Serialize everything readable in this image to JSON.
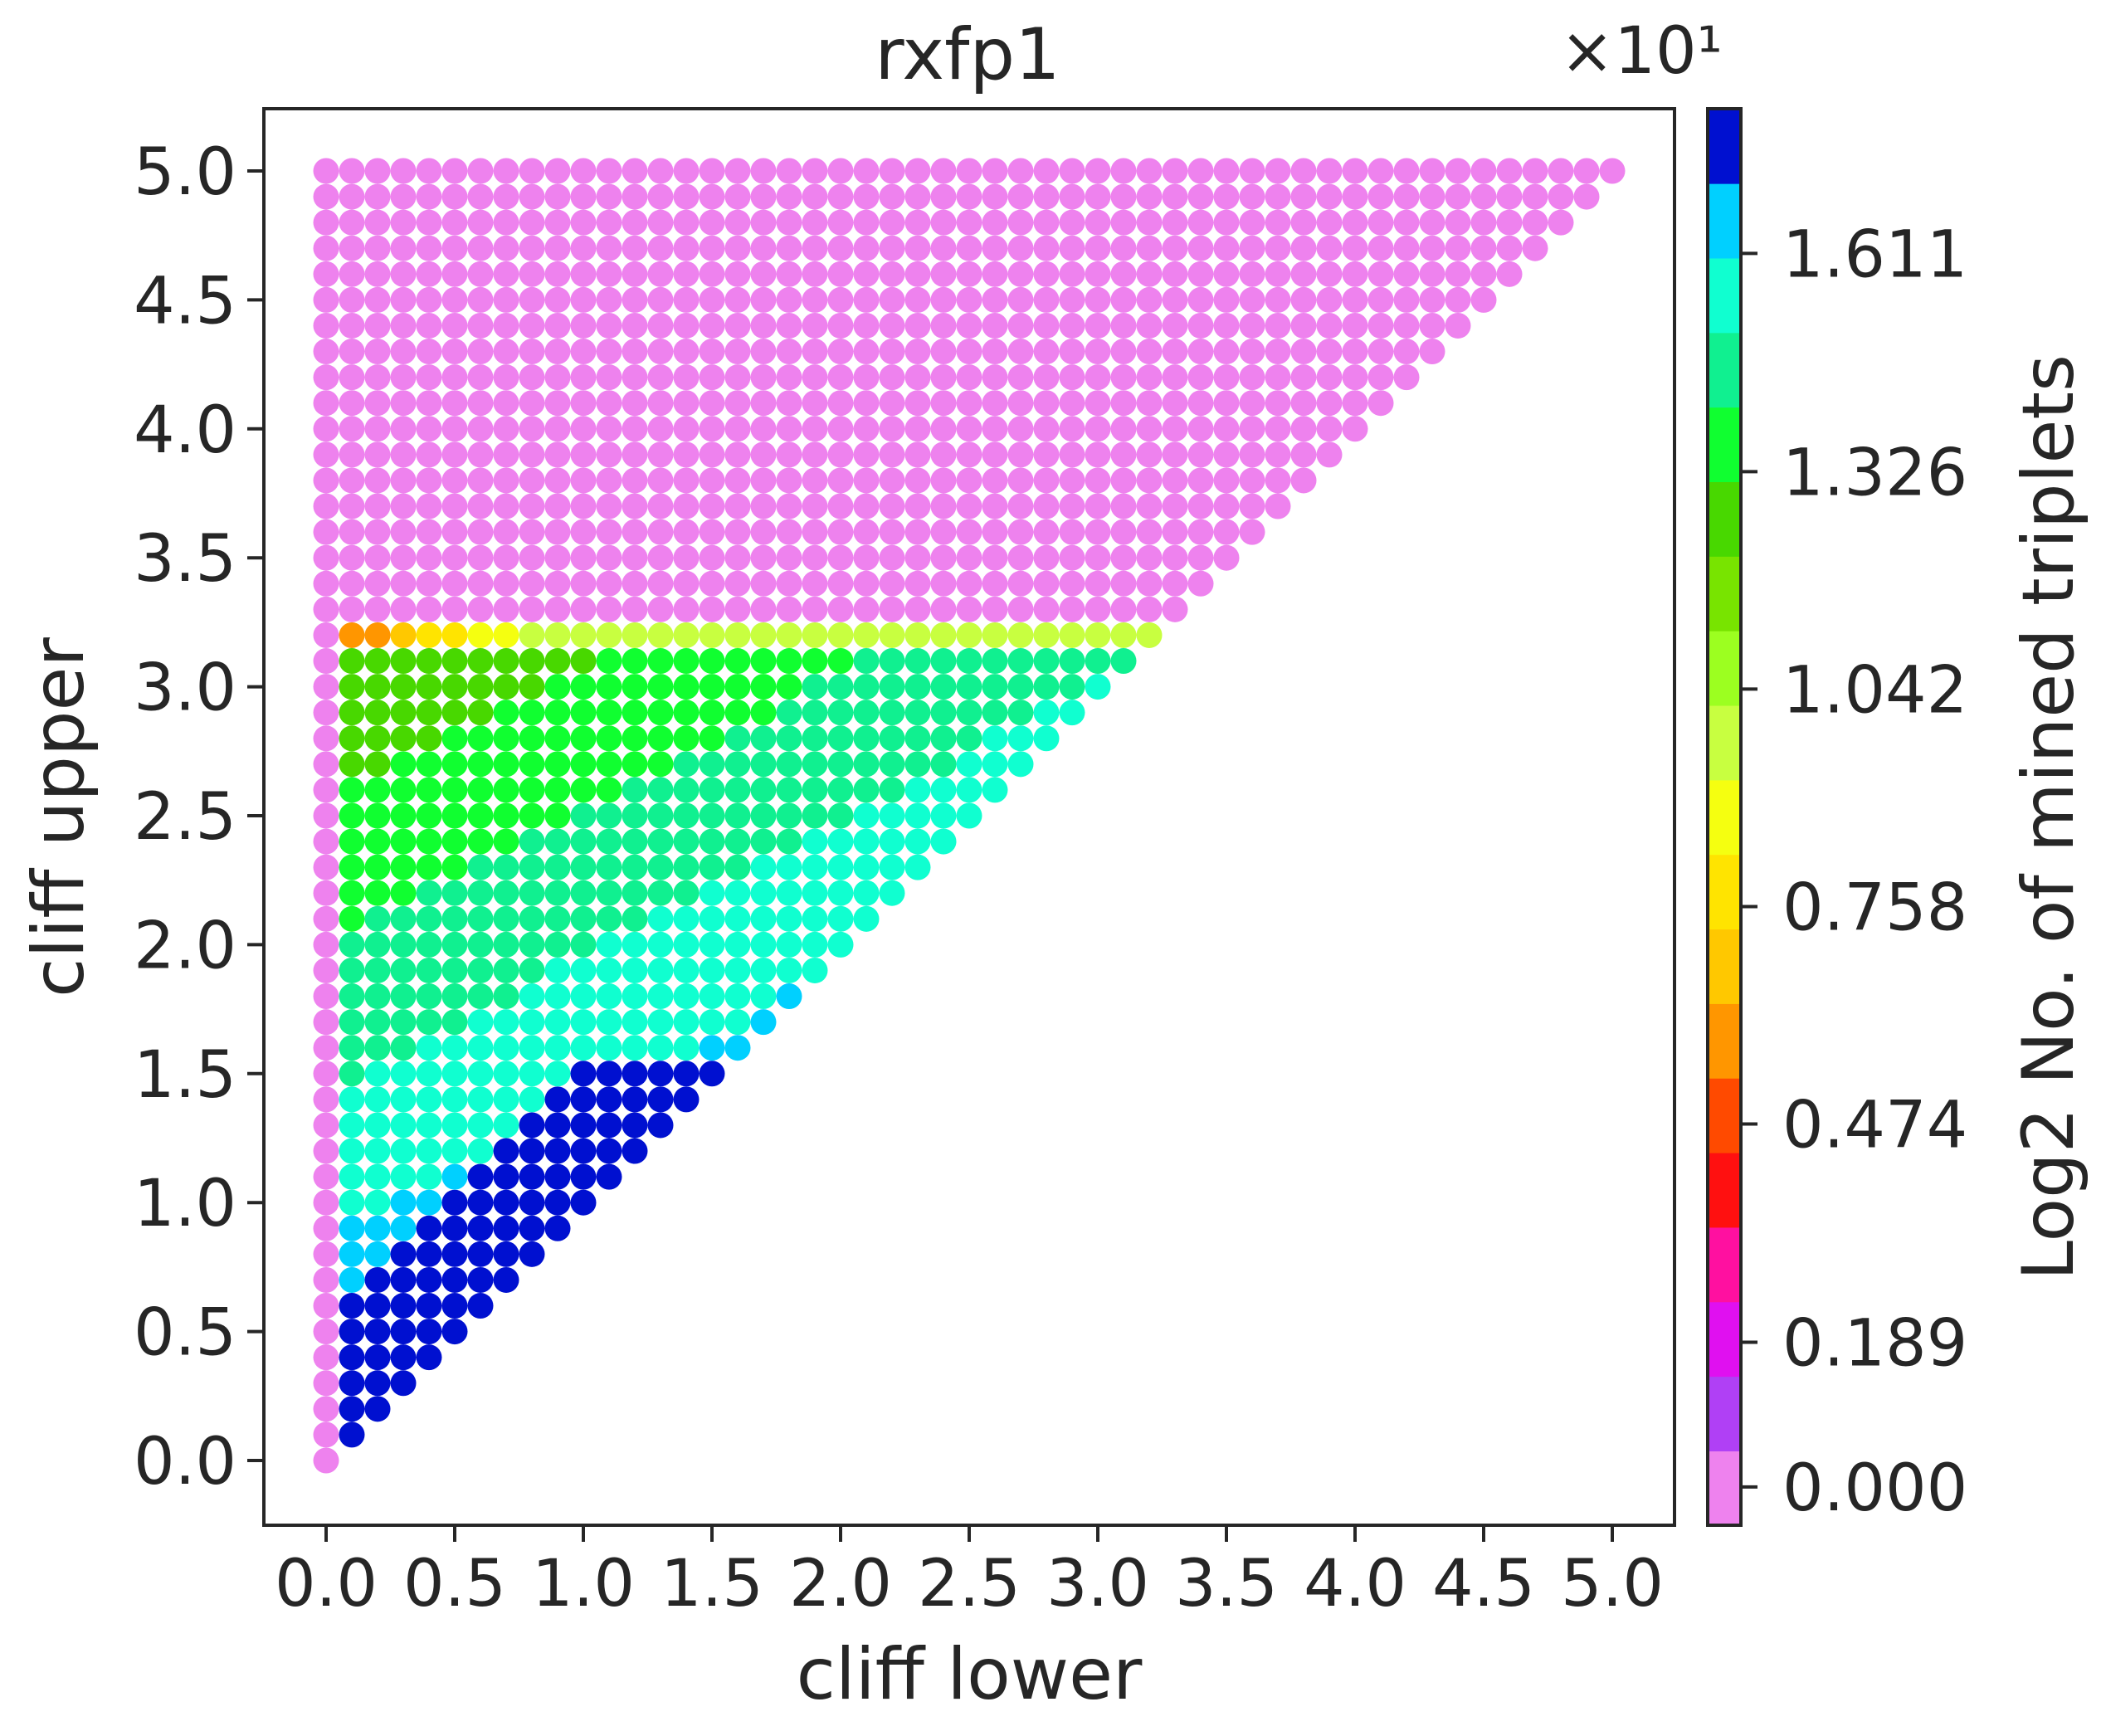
{
  "chart_data": {
    "type": "scatter",
    "title": "rxfp1",
    "xlabel": "cliff lower",
    "ylabel": "cliff upper",
    "xlim": [
      -0.25,
      5.25
    ],
    "ylim": [
      -0.25,
      5.25
    ],
    "x_ticks": [
      "0.0",
      "0.5",
      "1.0",
      "1.5",
      "2.0",
      "2.5",
      "3.0",
      "3.5",
      "4.0",
      "4.5",
      "5.0"
    ],
    "y_ticks": [
      "0.0",
      "0.5",
      "1.0",
      "1.5",
      "2.0",
      "2.5",
      "3.0",
      "3.5",
      "4.0",
      "4.5",
      "5.0"
    ],
    "grid": false,
    "point_step": 0.1,
    "point_rule": "one point at every (cliff lower, cliff upper) pair on a 0.1 grid with cliff lower <= cliff upper <= 5.0; cliff lower ranges 0.0 to 5.0",
    "value_description": "Log2 No. of mined triplets (x10^1 scale)",
    "value_estimation": {
      "zero_region": "cliff lower = 0.0 or cliff upper > 3.2 gives 0.000",
      "top_edge_at_3.2": "low values (~0.5 to 1.0) along cliff upper = 3.2",
      "near_diagonal": "highest values (~1.75) just above the diagonal for cliff upper <= 1.5",
      "interior": "values rise from ~0.9 near top-left (cliff lower 0.1, cliff upper 3.1) to ~1.6 near the diagonal"
    },
    "colorbar": {
      "label": "Log2 No. of mined triplets",
      "offset_text": "×10¹",
      "range": [
        -0.05,
        1.8
      ],
      "ticks": [
        {
          "value": 0.0,
          "label": "0.000"
        },
        {
          "value": 0.189,
          "label": "0.189"
        },
        {
          "value": 0.474,
          "label": "0.474"
        },
        {
          "value": 0.758,
          "label": "0.758"
        },
        {
          "value": 1.042,
          "label": "1.042"
        },
        {
          "value": 1.326,
          "label": "1.326"
        },
        {
          "value": 1.611,
          "label": "1.611"
        }
      ],
      "colors": [
        "#ee82ee",
        "#b040f5",
        "#e010f0",
        "#ff10a0",
        "#ff1010",
        "#ff4a00",
        "#ff9600",
        "#ffc800",
        "#ffe400",
        "#f5ff10",
        "#c8ff40",
        "#9cff20",
        "#78e400",
        "#48d800",
        "#10ff30",
        "#10f090",
        "#10ffd0",
        "#00d0ff",
        "#0010d0"
      ]
    }
  }
}
